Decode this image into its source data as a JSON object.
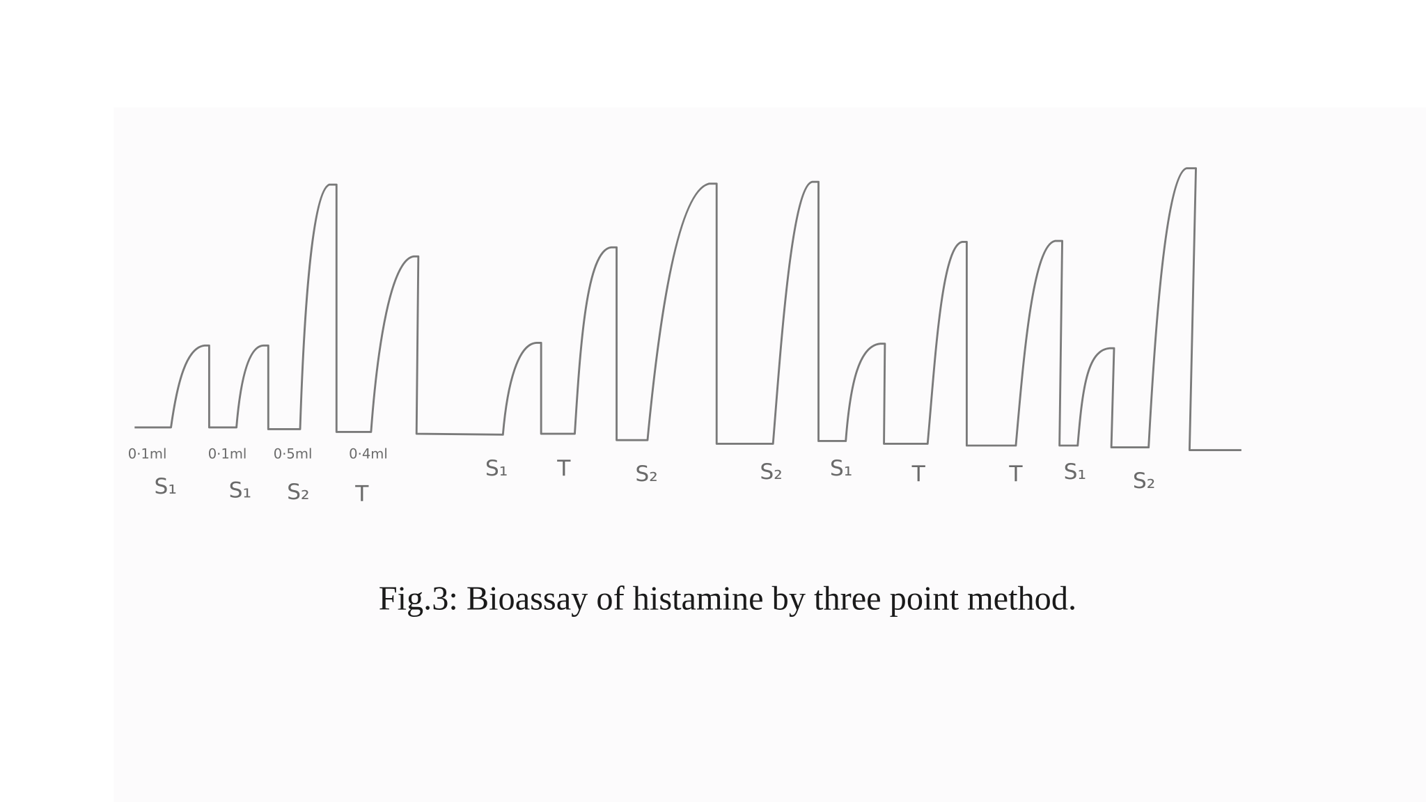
{
  "doses": [
    "0·1ml",
    "0·1ml",
    "0·5ml",
    "0·4ml"
  ],
  "labels": [
    "S₁",
    "S₁",
    "S₂",
    "T",
    "S₁",
    "T",
    "S₂",
    "S₂",
    "S₁",
    "T",
    "T",
    "S₁",
    "S₂"
  ],
  "caption": "Fig.3:  Bioassay of histamine by three point method."
}
